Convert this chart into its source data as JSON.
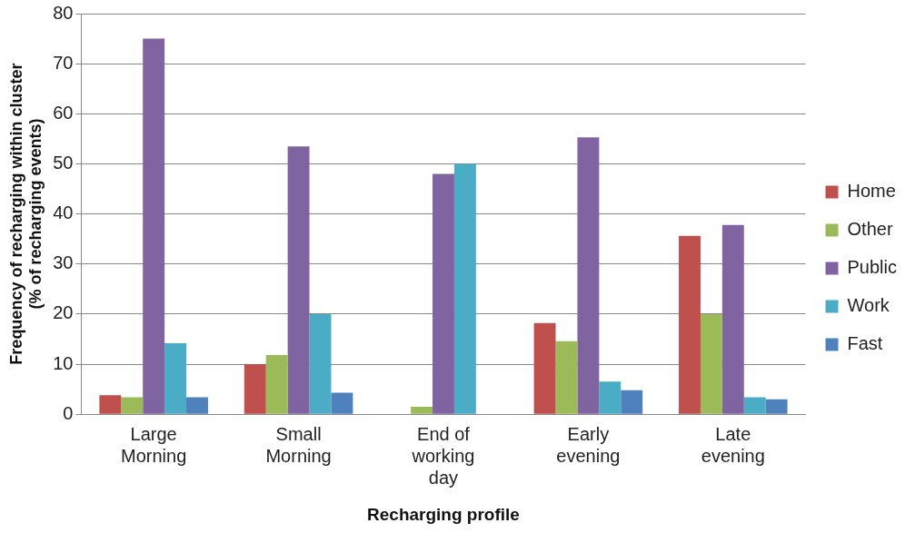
{
  "chart_data": {
    "type": "bar",
    "xlabel": "Recharging profile",
    "ylabel": "Frequency of recharging within cluster (% of recharging events)",
    "categories": [
      "Large Morning",
      "Small Morning",
      "End of working day",
      "Early evening",
      "Late evening"
    ],
    "series": [
      {
        "name": "Home",
        "color": "#c0504d",
        "values": [
          3.8,
          10,
          0,
          18.2,
          35.6
        ]
      },
      {
        "name": "Other",
        "color": "#9bbb59",
        "values": [
          3.4,
          11.8,
          1.5,
          14.6,
          20
        ]
      },
      {
        "name": "Public",
        "color": "#8064a2",
        "values": [
          75,
          53.5,
          48,
          55.3,
          37.8
        ]
      },
      {
        "name": "Work",
        "color": "#4bacc6",
        "values": [
          14.2,
          20,
          50,
          6.5,
          3.4
        ]
      },
      {
        "name": "Fast",
        "color": "#4f81bd",
        "values": [
          3.4,
          4.3,
          0,
          4.8,
          3
        ]
      }
    ],
    "ylim": [
      0,
      80
    ],
    "yticks": [
      0,
      10,
      20,
      30,
      40,
      50,
      60,
      70,
      80
    ],
    "grid": "y",
    "legend": "right"
  }
}
